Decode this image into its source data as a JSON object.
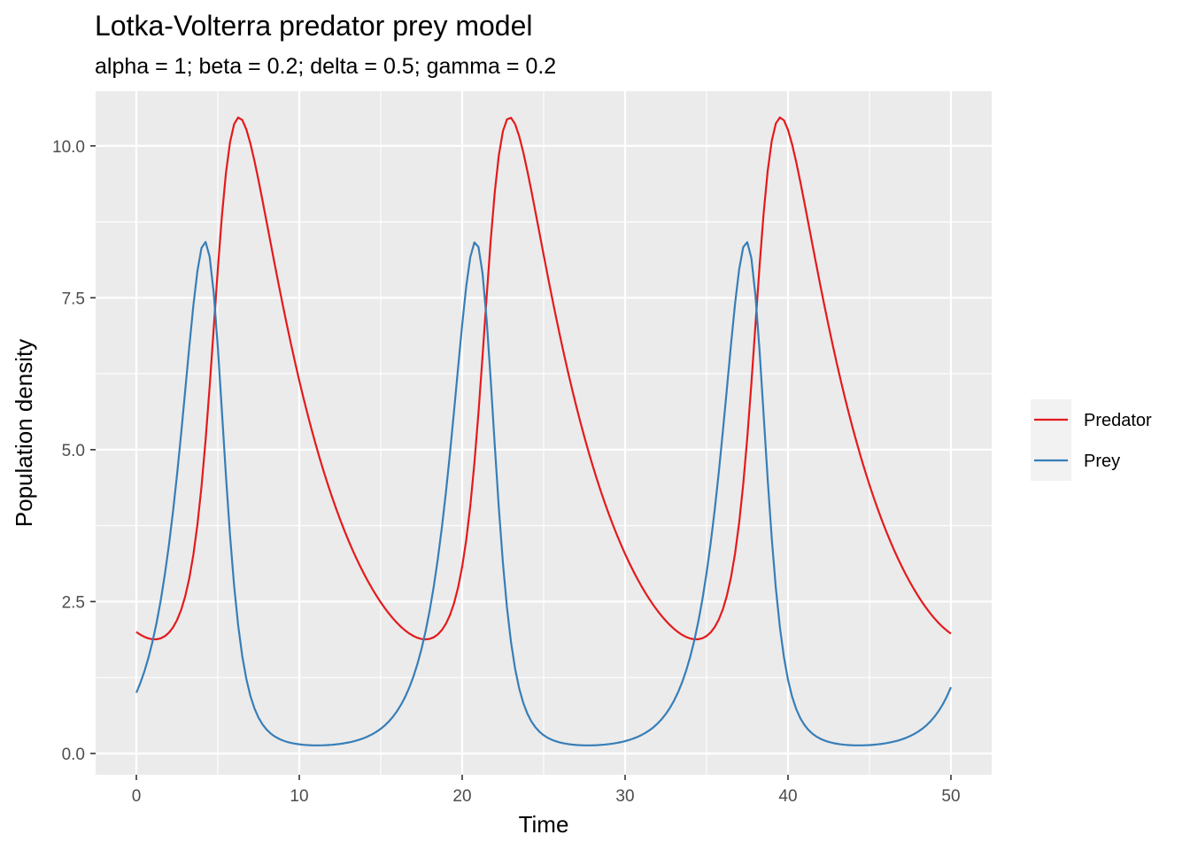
{
  "chart_data": {
    "type": "line",
    "title": "Lotka-Volterra predator prey model",
    "subtitle": "alpha = 1; beta = 0.2; delta = 0.5; gamma = 0.2",
    "xlabel": "Time",
    "ylabel": "Population density",
    "xlim": [
      -2.5,
      52.5
    ],
    "ylim": [
      -0.35,
      10.9
    ],
    "x_ticks": [
      0,
      10,
      20,
      30,
      40,
      50
    ],
    "x_tick_labels": [
      "0",
      "10",
      "20",
      "30",
      "40",
      "50"
    ],
    "y_ticks": [
      0,
      2.5,
      5,
      7.5,
      10
    ],
    "y_tick_labels": [
      "0.0",
      "2.5",
      "5.0",
      "7.5",
      "10.0"
    ],
    "grid": true,
    "legend_position": "right",
    "params": {
      "alpha": 1,
      "beta": 0.2,
      "delta": 0.5,
      "gamma": 0.2
    },
    "initial": {
      "prey": 1,
      "predator": 2
    },
    "t_end": 50,
    "series": [
      {
        "name": "Predator",
        "color": "#e41a1c"
      },
      {
        "name": "Prey",
        "color": "#377eb8"
      }
    ]
  },
  "colors": {
    "panel": "#ebebeb",
    "grid": "#ffffff",
    "legend_key_bg": "#f2f2f2"
  }
}
